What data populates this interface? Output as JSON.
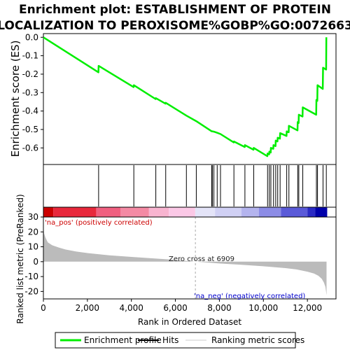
{
  "title_line1": "Enrichment plot: ESTABLISHMENT OF PROTEIN",
  "title_line2": "LOCALIZATION TO PEROXISOME%GOBP%GO:0072663",
  "colors": {
    "curve": "#00ee00",
    "hits": "#000000",
    "metric_fill": "#bbbbbb",
    "zero_line": "#aaaaaa"
  },
  "chart_data": [
    {
      "type": "line",
      "panel": "enrichment_profile",
      "ylabel": "Enrichment score (ES)",
      "xlim": [
        0,
        13300
      ],
      "ylim": [
        -0.69,
        0.02
      ],
      "yticks": [
        0.0,
        -0.1,
        -0.2,
        -0.3,
        -0.4,
        -0.5,
        -0.6
      ],
      "ytick_labels": [
        "0.0",
        "-0.1",
        "-0.2",
        "-0.3",
        "-0.4",
        "-0.5",
        "-0.6"
      ],
      "series": [
        {
          "name": "Enrichment profile",
          "x": [
            0,
            2500,
            2510,
            4100,
            4110,
            5100,
            5110,
            5550,
            5560,
            6500,
            6950,
            7650,
            7680,
            7750,
            7900,
            8050,
            8650,
            8660,
            9150,
            9160,
            9550,
            9560,
            10180,
            10190,
            10260,
            10270,
            10330,
            10340,
            10450,
            10460,
            10550,
            10560,
            10640,
            10650,
            10750,
            10760,
            11050,
            11060,
            11150,
            11160,
            11550,
            11560,
            11600,
            11610,
            11780,
            11790,
            12400,
            12410,
            12450,
            12460,
            12700,
            12710,
            12850,
            12860
          ],
          "y": [
            0.0,
            -0.19,
            -0.155,
            -0.27,
            -0.26,
            -0.335,
            -0.33,
            -0.36,
            -0.355,
            -0.425,
            -0.455,
            -0.51,
            -0.51,
            -0.512,
            -0.518,
            -0.525,
            -0.57,
            -0.565,
            -0.595,
            -0.585,
            -0.61,
            -0.6,
            -0.645,
            -0.63,
            -0.635,
            -0.62,
            -0.625,
            -0.6,
            -0.605,
            -0.585,
            -0.59,
            -0.56,
            -0.565,
            -0.545,
            -0.55,
            -0.52,
            -0.535,
            -0.51,
            -0.515,
            -0.48,
            -0.505,
            -0.46,
            -0.465,
            -0.42,
            -0.43,
            -0.38,
            -0.42,
            -0.34,
            -0.345,
            -0.26,
            -0.28,
            -0.165,
            -0.175,
            0.0
          ]
        }
      ]
    },
    {
      "type": "scatter",
      "panel": "hits",
      "series": [
        {
          "name": "Hits",
          "x": [
            2510,
            4110,
            5110,
            5560,
            6500,
            6950,
            7650,
            7680,
            7750,
            7900,
            8050,
            8660,
            9160,
            9560,
            10190,
            10270,
            10340,
            10460,
            10560,
            10650,
            10760,
            11060,
            11160,
            11560,
            11610,
            11790,
            12410,
            12460,
            12710,
            12860
          ]
        }
      ]
    },
    {
      "type": "heatmap",
      "panel": "ranking_color_bar",
      "segments": [
        {
          "from": 0,
          "to": 450,
          "color": "#cc0000"
        },
        {
          "from": 450,
          "to": 2400,
          "color": "#e8283c"
        },
        {
          "from": 2400,
          "to": 3500,
          "color": "#f06080"
        },
        {
          "from": 3500,
          "to": 4800,
          "color": "#f48aa4"
        },
        {
          "from": 4800,
          "to": 5700,
          "color": "#f8b4d0"
        },
        {
          "from": 5700,
          "to": 6900,
          "color": "#fbc8e6"
        },
        {
          "from": 6900,
          "to": 7800,
          "color": "#e4e4f8"
        },
        {
          "from": 7800,
          "to": 9000,
          "color": "#d0d0f4"
        },
        {
          "from": 9000,
          "to": 9800,
          "color": "#b4b4ee"
        },
        {
          "from": 9800,
          "to": 10800,
          "color": "#8c8ce6"
        },
        {
          "from": 10800,
          "to": 12000,
          "color": "#5a5ad8"
        },
        {
          "from": 12000,
          "to": 12350,
          "color": "#2a2ac4"
        },
        {
          "from": 12350,
          "to": 12900,
          "color": "#0000aa"
        }
      ]
    },
    {
      "type": "area",
      "panel": "ranked_list_metric",
      "xlabel": "Rank in Ordered Dataset",
      "ylabel": "Ranked list metric (PreRanked)",
      "xlim": [
        0,
        13300
      ],
      "ylim": [
        -25,
        30
      ],
      "xticks": [
        0,
        2000,
        4000,
        6000,
        8000,
        10000,
        12000
      ],
      "xtick_labels": [
        "0",
        "2,000",
        "4,000",
        "6,000",
        "8,000",
        "10,000",
        "12,000"
      ],
      "yticks": [
        30,
        20,
        10,
        0,
        -10,
        -20
      ],
      "ytick_labels": [
        "30",
        "20",
        "10",
        "0",
        "-10",
        "-20"
      ],
      "series": [
        {
          "name": "Ranking metric scores",
          "x": [
            0,
            30,
            100,
            200,
            400,
            700,
            1000,
            1500,
            2000,
            3000,
            4000,
            5000,
            6000,
            6909,
            8000,
            9000,
            10000,
            11000,
            11500,
            12000,
            12300,
            12500,
            12650,
            12750,
            12820,
            12870
          ],
          "y": [
            22,
            19,
            16,
            13,
            11,
            9.5,
            8.2,
            6.8,
            5.8,
            4.3,
            3.2,
            2.2,
            1.2,
            0,
            -1.2,
            -2.1,
            -3.1,
            -4.3,
            -5.2,
            -6.7,
            -8.0,
            -9.5,
            -11.5,
            -14.0,
            -17.0,
            -22.5
          ]
        }
      ],
      "annotations": {
        "pos_label": "'na_pos' (positively correlated)",
        "neg_label": "'na_neg' (negatively correlated)",
        "zero_cross_label": "Zero cross at 6909",
        "zero_cross_x": 6909
      }
    }
  ],
  "legend": {
    "items": [
      {
        "label": "Enrichment profile",
        "color": "#00ee00"
      },
      {
        "label": "Hits",
        "color": "#000000"
      },
      {
        "label": "Ranking metric scores",
        "color": "#cccccc"
      }
    ]
  }
}
